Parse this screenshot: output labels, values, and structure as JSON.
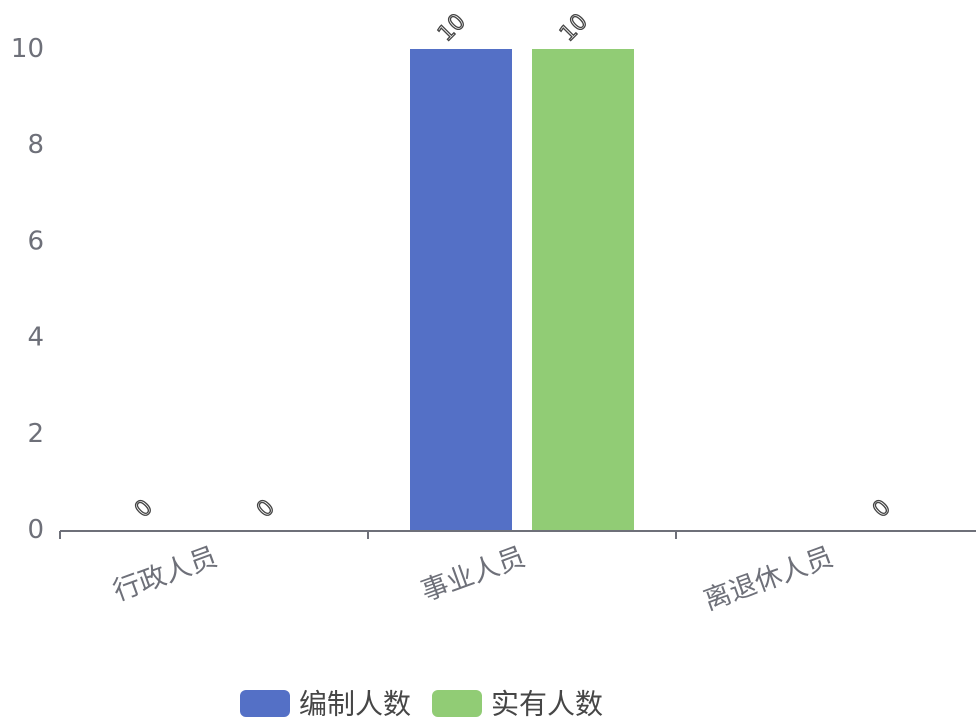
{
  "chart_data": {
    "type": "bar",
    "categories": [
      "行政人员",
      "事业人员",
      "离退休人员"
    ],
    "series": [
      {
        "name": "编制人数",
        "values": [
          0,
          10,
          null
        ],
        "color": "#5470c6"
      },
      {
        "name": "实有人数",
        "values": [
          0,
          10,
          0
        ],
        "color": "#91cc75"
      }
    ],
    "yticks": [
      0,
      2,
      4,
      6,
      8,
      10
    ],
    "ylim": [
      0,
      10
    ],
    "grid": false,
    "legend": "bottom",
    "data_labels": true,
    "axis_color": "#6e7079"
  }
}
